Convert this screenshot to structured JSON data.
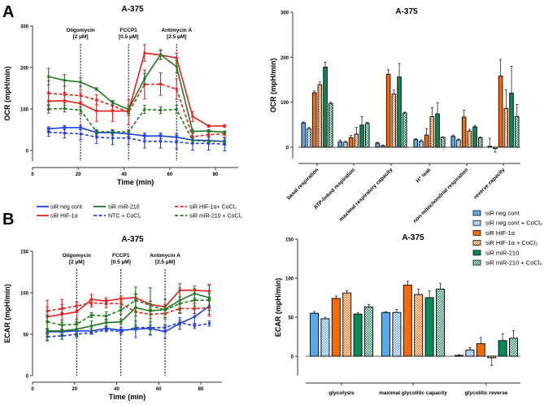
{
  "panels": {
    "a": "A",
    "b": "B"
  },
  "legend_lines": [
    {
      "label": "siR neg cont",
      "color": "#1f3fe0",
      "dash": false
    },
    {
      "label": "siR HIF-1α",
      "color": "#e8201c",
      "dash": false
    },
    {
      "label": "siR miR-210",
      "color": "#1e7a1e",
      "dash": false
    },
    {
      "label": "NTC + CoCl₂",
      "color": "#1f3fe0",
      "dash": true
    },
    {
      "label": "siR HIF-1α+ CoCl₂",
      "color": "#e8201c",
      "dash": true
    },
    {
      "label": "siR miR-210 + CoCl₂",
      "color": "#1e7a1e",
      "dash": true
    }
  ],
  "legend_bars": [
    {
      "label": "siR neg cont",
      "color": "#5aa9ea",
      "checker": false
    },
    {
      "label": "siR neg cont + CoCl₂",
      "color": "#5aa9ea",
      "checker": true
    },
    {
      "label": "siR HIF-1α",
      "color": "#ff6a00",
      "checker": false
    },
    {
      "label": "siR HIF-1α + CoCl₂",
      "color": "#ff6a00",
      "checker": true
    },
    {
      "label": "siR miR-210",
      "color": "#0b8a55",
      "checker": false
    },
    {
      "label": "siR miR-210 + CoCl₂",
      "color": "#0b8a55",
      "checker": true
    }
  ],
  "chart_data": [
    {
      "id": "ocr-line",
      "type": "line",
      "title": "A-375",
      "xlabel": "Time (min)",
      "ylabel": "OCR (mpH/min)",
      "xlim": [
        0,
        90
      ],
      "ylim": [
        -25,
        300
      ],
      "xticks": [
        0,
        20,
        40,
        60,
        80
      ],
      "yticks": [
        0,
        100,
        200,
        300
      ],
      "annotations": [
        {
          "x": 21,
          "label": [
            "Oligomycin",
            "[2 µM]"
          ]
        },
        {
          "x": 42,
          "label": [
            "FCCP1",
            "[0.5 µM]"
          ]
        },
        {
          "x": 63,
          "label": [
            "Antimycin A",
            "[2.5 µM]"
          ]
        }
      ],
      "x": [
        7,
        14,
        21,
        28,
        35,
        42,
        49,
        56,
        63,
        70,
        77,
        84
      ],
      "series": [
        {
          "name": "siR neg cont",
          "values": [
            52,
            55,
            55,
            43,
            43,
            40,
            35,
            35,
            32,
            25,
            24,
            22
          ],
          "err": [
            5,
            5,
            5,
            6,
            6,
            6,
            7,
            7,
            8,
            8,
            8,
            8
          ]
        },
        {
          "name": "NTC + CoCl₂",
          "values": [
            44,
            42,
            40,
            32,
            30,
            30,
            22,
            22,
            20,
            17,
            17,
            15
          ],
          "err": [
            10,
            12,
            14,
            15,
            16,
            16,
            16,
            16,
            16,
            16,
            16,
            16
          ]
        },
        {
          "name": "siR HIF-1α",
          "values": [
            119,
            120,
            113,
            95,
            95,
            95,
            235,
            230,
            223,
            82,
            59,
            59
          ],
          "err": [
            22,
            20,
            25,
            25,
            25,
            10,
            20,
            10,
            12,
            12,
            3,
            3
          ]
        },
        {
          "name": "siR HIF-1α+ CoCl₂",
          "values": [
            138,
            135,
            132,
            122,
            108,
            92,
            159,
            160,
            148,
            33,
            38,
            40
          ],
          "err": [
            30,
            20,
            15,
            12,
            10,
            30,
            35,
            27,
            25,
            8,
            5,
            5
          ]
        },
        {
          "name": "siR miR-210",
          "values": [
            178,
            169,
            165,
            148,
            115,
            99,
            173,
            231,
            202,
            46,
            47,
            44
          ],
          "err": [
            20,
            14,
            10,
            3,
            5,
            10,
            12,
            12,
            15,
            5,
            3,
            3
          ]
        },
        {
          "name": "siR miR-210 + CoCl₂",
          "values": [
            100,
            101,
            97,
            45,
            45,
            45,
            99,
            97,
            99,
            24,
            22,
            22
          ],
          "err": [
            10,
            8,
            8,
            5,
            5,
            5,
            10,
            8,
            10,
            5,
            3,
            3
          ]
        }
      ]
    },
    {
      "id": "ocr-bar",
      "type": "bar",
      "title": "A-375",
      "xlabel": "",
      "ylabel": "OCR (mpH/min)",
      "ylim": [
        -25,
        300
      ],
      "yticks": [
        0,
        100,
        200,
        300
      ],
      "categories": [
        "basal respiration",
        "ATP-linked respiration",
        "maximal respiratory capacity",
        "H⁺ leak",
        "non-mitochondrial respiration",
        "reverse capacity"
      ],
      "series": [
        {
          "name": "siR neg cont",
          "values": [
            54,
            12,
            9,
            17,
            24,
            2
          ],
          "err": [
            2,
            4,
            2,
            2,
            3,
            18
          ]
        },
        {
          "name": "siR neg cont + CoCl₂",
          "values": [
            41,
            11,
            3,
            13,
            16,
            -3
          ],
          "err": [
            3,
            2,
            2,
            3,
            2,
            8
          ]
        },
        {
          "name": "siR HIF-1α",
          "values": [
            121,
            21,
            162,
            27,
            67,
            158
          ],
          "err": [
            4,
            5,
            10,
            14,
            15,
            37
          ]
        },
        {
          "name": "siR HIF-1α + CoCl₂",
          "values": [
            139,
            29,
            118,
            68,
            36,
            86
          ],
          "err": [
            6,
            15,
            9,
            20,
            4,
            42
          ]
        },
        {
          "name": "siR miR-210",
          "values": [
            178,
            49,
            156,
            74,
            45,
            120
          ],
          "err": [
            11,
            19,
            30,
            25,
            3,
            60
          ]
        },
        {
          "name": "siR miR-210 + CoCl₂",
          "values": [
            97,
            53,
            76,
            22,
            21,
            68
          ],
          "err": [
            3,
            2,
            2,
            1,
            2,
            27
          ]
        }
      ]
    },
    {
      "id": "ecar-line",
      "type": "line",
      "title": "A-375",
      "xlabel": "Time (min)",
      "ylabel": "ECAR (mpH/min)",
      "xlim": [
        0,
        90
      ],
      "ylim": [
        0,
        150
      ],
      "xticks": [
        0,
        20,
        40,
        60,
        80
      ],
      "yticks": [
        0,
        50,
        100,
        150
      ],
      "annotations": [
        {
          "x": 21,
          "label": [
            "Oligomycin",
            "[2 µM]"
          ]
        },
        {
          "x": 42,
          "label": [
            "FCCP1",
            "[0.5 µM]"
          ]
        },
        {
          "x": 63,
          "label": [
            "Antimycin A",
            "[2.5 µM]"
          ]
        }
      ],
      "x": [
        7,
        14,
        21,
        28,
        35,
        42,
        49,
        56,
        63,
        70,
        77,
        84
      ],
      "series": [
        {
          "name": "siR neg cont",
          "values": [
            53,
            53,
            54,
            54,
            57,
            55,
            56,
            57,
            53,
            63,
            71,
            84
          ],
          "err": [
            3,
            3,
            3,
            3,
            2,
            3,
            10,
            8,
            8,
            7,
            9,
            10
          ]
        },
        {
          "name": "NTC + CoCl₂",
          "values": [
            47,
            48,
            50,
            52,
            55,
            53,
            58,
            58,
            58,
            64,
            60,
            63
          ],
          "err": [
            4,
            4,
            3,
            2,
            2,
            3,
            3,
            3,
            3,
            3,
            3,
            3
          ]
        },
        {
          "name": "siR HIF-1α",
          "values": [
            71,
            74,
            77,
            92,
            90,
            93,
            94,
            86,
            83,
            103,
            103,
            102
          ],
          "err": [
            20,
            18,
            12,
            6,
            4,
            3,
            4,
            4,
            3,
            8,
            5,
            8
          ]
        },
        {
          "name": "siR HIF-1α+ CoCl₂",
          "values": [
            78,
            81,
            84,
            88,
            87,
            87,
            77,
            74,
            75,
            81,
            81,
            82
          ],
          "err": [
            5,
            5,
            5,
            5,
            5,
            5,
            5,
            5,
            5,
            6,
            6,
            10
          ]
        },
        {
          "name": "siR miR-210",
          "values": [
            54,
            54,
            56,
            60,
            64,
            65,
            82,
            78,
            80,
            91,
            99,
            94
          ],
          "err": [
            12,
            10,
            8,
            6,
            4,
            3,
            25,
            28,
            12,
            15,
            6,
            15
          ]
        },
        {
          "name": "siR miR-210 + CoCl₂",
          "values": [
            65,
            61,
            62,
            73,
            72,
            79,
            91,
            85,
            79,
            87,
            91,
            91
          ],
          "err": [
            8,
            6,
            6,
            3,
            5,
            5,
            8,
            5,
            5,
            8,
            7,
            8
          ]
        }
      ]
    },
    {
      "id": "ecar-bar",
      "type": "bar",
      "title": "A-375",
      "xlabel": "",
      "ylabel": "ECAR (mpH/min)",
      "ylim": [
        -25,
        150
      ],
      "yticks": [
        0,
        50,
        100,
        150
      ],
      "categories": [
        "glycolysis",
        "maximal glycolitic capacity",
        "glycolitic reverse"
      ],
      "series": [
        {
          "name": "siR neg cont",
          "values": [
            55,
            56,
            1
          ],
          "err": [
            2,
            1,
            1
          ]
        },
        {
          "name": "siR neg cont + CoCl₂",
          "values": [
            48,
            56,
            8
          ],
          "err": [
            2,
            4,
            3
          ]
        },
        {
          "name": "siR HIF-1α",
          "values": [
            74,
            91,
            16
          ],
          "err": [
            3,
            5,
            8
          ]
        },
        {
          "name": "siR HIF-1α + CoCl₂",
          "values": [
            81,
            79,
            -2
          ],
          "err": [
            3,
            7,
            10
          ]
        },
        {
          "name": "siR miR-210",
          "values": [
            54,
            75,
            20
          ],
          "err": [
            2,
            9,
            9
          ]
        },
        {
          "name": "siR miR-210 + CoCl₂",
          "values": [
            63,
            86,
            23
          ],
          "err": [
            3,
            7,
            10
          ]
        }
      ]
    }
  ]
}
